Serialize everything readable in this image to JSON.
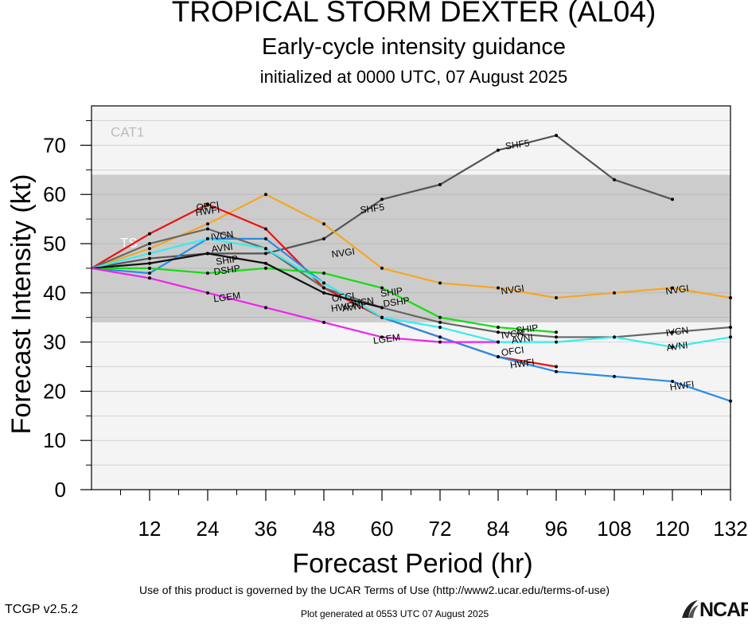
{
  "header": {
    "title": "TROPICAL STORM DEXTER (AL04)",
    "subtitle": "Early-cycle intensity guidance",
    "init": "initialized at 0000 UTC, 07 August 2025"
  },
  "footer": {
    "terms": "Use of this product is governed by the UCAR Terms of Use (http://www2.ucar.edu/terms-of-use)",
    "version": "TCGP v2.5.2",
    "generated": "Plot generated at 0553 UTC   07 August 2025",
    "logo": "NCAR",
    "logo_icon": "ncar-logo-icon"
  },
  "chart_data": {
    "type": "line",
    "xlabel": "Forecast Period (hr)",
    "ylabel": "Forecast Intensity (kt)",
    "xlim": [
      0,
      132
    ],
    "ylim": [
      0,
      78
    ],
    "xticks": [
      12,
      24,
      36,
      48,
      60,
      72,
      84,
      96,
      108,
      120,
      132
    ],
    "yticks": [
      0,
      10,
      20,
      30,
      40,
      50,
      60,
      70
    ],
    "bands": [
      {
        "label": "TS",
        "from": 34,
        "to": 64,
        "color": "#cccccc"
      },
      {
        "label": "CAT1",
        "from": 64,
        "to": 78,
        "color": "#f4f4f4"
      }
    ],
    "below_color": "#f4f4f4",
    "grid": "horizontal",
    "series": [
      {
        "name": "SHF5",
        "color": "#555555",
        "x": [
          0,
          12,
          24,
          36,
          48,
          60,
          72,
          84,
          96,
          108,
          120
        ],
        "y": [
          45,
          47,
          48,
          48,
          51,
          59,
          62,
          69,
          72,
          63,
          59
        ],
        "labels": [
          {
            "x": 58,
            "y": 57
          },
          {
            "x": 88,
            "y": 70
          }
        ]
      },
      {
        "name": "NVGI",
        "color": "#f5a623",
        "x": [
          0,
          12,
          24,
          36,
          48,
          60,
          72,
          84,
          96,
          108,
          120,
          132
        ],
        "y": [
          45,
          49,
          54,
          60,
          54,
          45,
          42,
          41,
          39,
          40,
          41,
          39
        ],
        "labels": [
          {
            "x": 52,
            "y": 48
          },
          {
            "x": 87,
            "y": 40.5
          },
          {
            "x": 121,
            "y": 40.5
          }
        ]
      },
      {
        "name": "OFCI",
        "color": "#ee1111",
        "x": [
          0,
          12,
          24,
          36,
          48,
          60,
          72,
          84,
          96
        ],
        "y": [
          45,
          52,
          58,
          53,
          41,
          35,
          31,
          27,
          25
        ],
        "labels": [
          {
            "x": 24,
            "y": 57.5
          },
          {
            "x": 52,
            "y": 39
          },
          {
            "x": 87,
            "y": 28
          }
        ]
      },
      {
        "name": "HWFI",
        "color": "#2b8be8",
        "x": [
          0,
          12,
          24,
          36,
          48,
          60,
          72,
          84,
          96,
          108,
          120,
          132
        ],
        "y": [
          45,
          44,
          51,
          51,
          42,
          35,
          31,
          27,
          24,
          23,
          22,
          18
        ],
        "labels": [
          {
            "x": 24,
            "y": 56.5
          },
          {
            "x": 52,
            "y": 37
          },
          {
            "x": 89,
            "y": 25.5
          },
          {
            "x": 122,
            "y": 21
          }
        ]
      },
      {
        "name": "IVCN",
        "color": "#666666",
        "x": [
          0,
          12,
          24,
          36,
          48,
          60,
          72,
          84,
          96,
          108,
          120,
          132
        ],
        "y": [
          45,
          50,
          53,
          49,
          41,
          37,
          34,
          32,
          31,
          31,
          32,
          33
        ],
        "labels": [
          {
            "x": 27,
            "y": 51.5
          },
          {
            "x": 56,
            "y": 38
          },
          {
            "x": 87,
            "y": 31.5
          },
          {
            "x": 121,
            "y": 32
          }
        ]
      },
      {
        "name": "AVNI",
        "color": "#33eeee",
        "x": [
          0,
          12,
          24,
          36,
          48,
          60,
          72,
          84,
          96,
          108,
          120,
          132
        ],
        "y": [
          45,
          48,
          51,
          49,
          42,
          35,
          33,
          30,
          30,
          31,
          29,
          31
        ],
        "labels": [
          {
            "x": 27,
            "y": 49
          },
          {
            "x": 54,
            "y": 37
          },
          {
            "x": 89,
            "y": 30.5
          },
          {
            "x": 121,
            "y": 29
          }
        ]
      },
      {
        "name": "SHIP",
        "color": "#11dd11",
        "x": [
          0,
          12,
          24,
          36,
          48,
          60,
          72,
          84,
          96
        ],
        "y": [
          45,
          45,
          44,
          45,
          44,
          41,
          35,
          33,
          32
        ],
        "labels": [
          {
            "x": 28,
            "y": 46.5
          },
          {
            "x": 62,
            "y": 40
          },
          {
            "x": 90,
            "y": 32.5
          }
        ]
      },
      {
        "name": "DSHP",
        "color": "#111111",
        "x": [
          0,
          12,
          24,
          36,
          48,
          60
        ],
        "y": [
          45,
          46,
          48,
          46,
          40,
          37
        ],
        "labels": [
          {
            "x": 28,
            "y": 44.5
          },
          {
            "x": 63,
            "y": 38
          }
        ]
      },
      {
        "name": "LGEM",
        "color": "#ee22ee",
        "x": [
          0,
          12,
          24,
          36,
          48,
          60,
          72,
          84
        ],
        "y": [
          45,
          43,
          40,
          37,
          34,
          31,
          30,
          30
        ],
        "labels": [
          {
            "x": 28,
            "y": 39
          },
          {
            "x": 61,
            "y": 30.5
          }
        ]
      }
    ]
  }
}
